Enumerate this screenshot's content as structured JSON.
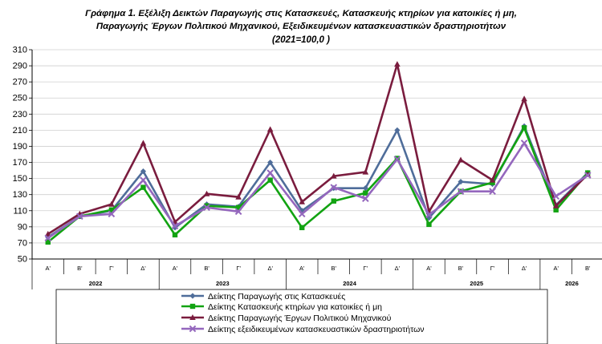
{
  "chart_data": {
    "type": "line",
    "title_lines": [
      "Γράφημα 1. Εξέλιξη  Δεικτών Παραγωγής στις Κατασκευές,  Κατασκευής κτηρίων για κατοικίες ή  μη,",
      "Παραγωγής  Έργων Πολιτικού Μηχανικού,  Εξειδικευμένων κατασκευαστικών δραστηριοτήτων",
      "(2021=100,0 )"
    ],
    "x": [
      "Α'",
      "Β'",
      "Γ'",
      "Δ'",
      "Α'",
      "Β'",
      "Γ'",
      "Δ'",
      "Α'",
      "Β'",
      "Γ'",
      "Δ'",
      "Α'",
      "Β'",
      "Γ'",
      "Δ'",
      "Α'",
      "Β'"
    ],
    "year_groups": [
      {
        "label": "2022",
        "count": 4
      },
      {
        "label": "2023",
        "count": 4
      },
      {
        "label": "2024",
        "count": 4
      },
      {
        "label": "2025",
        "count": 4
      },
      {
        "label": "2026",
        "count": 2
      }
    ],
    "ylim": [
      50,
      310
    ],
    "yticks": [
      50,
      70,
      90,
      110,
      130,
      150,
      170,
      190,
      210,
      230,
      250,
      270,
      290,
      310
    ],
    "grid": true,
    "legend_position": "bottom",
    "series": [
      {
        "name": "Δείκτης Παραγωγής στις Κατασκευές",
        "color": "#4f6d9a",
        "marker": "diamond",
        "values": [
          77,
          103,
          110,
          159,
          89,
          118,
          115,
          170,
          110,
          138,
          138,
          210,
          101,
          146,
          143,
          215,
          117,
          157
        ]
      },
      {
        "name": "Δείκτης Κατασκευής κτηρίων για κατοικίες ή μη",
        "color": "#12a312",
        "marker": "square",
        "values": [
          71,
          103,
          111,
          139,
          80,
          116,
          114,
          148,
          89,
          122,
          132,
          175,
          93,
          134,
          145,
          213,
          111,
          157
        ]
      },
      {
        "name": "Δείκτης Παραγωγής Έργων Πολιτικού Μηχανικού",
        "color": "#7a1c3e",
        "marker": "triangle",
        "values": [
          81,
          106,
          118,
          194,
          96,
          131,
          127,
          211,
          121,
          153,
          158,
          292,
          109,
          173,
          148,
          249,
          116,
          155
        ]
      },
      {
        "name": "Δείκτης εξειδικευμένων κατασκευαστικών δραστηριοτήτων",
        "color": "#9467bd",
        "marker": "x",
        "values": [
          76,
          103,
          106,
          148,
          91,
          114,
          109,
          157,
          106,
          139,
          125,
          174,
          105,
          134,
          134,
          194,
          128,
          154
        ]
      }
    ]
  }
}
